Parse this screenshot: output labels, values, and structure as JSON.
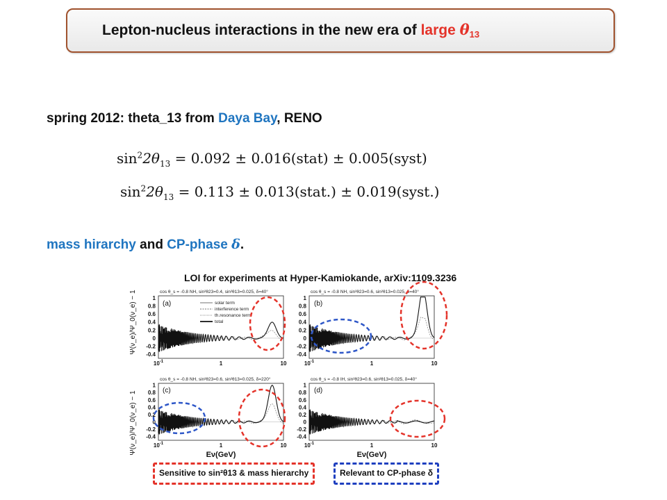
{
  "title": {
    "text_main": "Lepton-nucleus interactions in the new era of",
    "text_highlight": "large",
    "theta_symbol": "θ",
    "theta_sub": "13"
  },
  "line1": {
    "lead": "spring  2012: theta_13 from",
    "daya_bay": "Daya Bay",
    "sep": ",",
    "reno": "RENO"
  },
  "equations": [
    {
      "lhs_sin": "sin",
      "lhs_sup": "2",
      "lhs_rest": "2θ",
      "lhs_sub": "13",
      "rhs": "= 0.092 ± 0.016(stat) ± 0.005(syst)"
    },
    {
      "lhs_sin": "sin",
      "lhs_sup": "2",
      "lhs_rest": "2θ",
      "lhs_sub": "13",
      "rhs": "= 0.113 ± 0.013(stat.) ± 0.019(syst.)"
    }
  ],
  "line2": {
    "mass_hierarchy": "mass hirarchy",
    "and": "and",
    "cp_phase": "CP-phase",
    "delta": "δ",
    "period": "."
  },
  "figure": {
    "title": "LOI for experiments at Hyper-Kamiokande, arXiv:1109.3236",
    "ylabel": "Ψ(ν_e)/Ψ_0(ν_e) − 1",
    "xlabel": "Eν(GeV)",
    "y_ticks": [
      "1",
      "0.8",
      "0.6",
      "0.4",
      "0.2",
      "0",
      "-0.2",
      "-0.4"
    ],
    "x_ticks": [
      "10",
      "1",
      "10"
    ],
    "x_tick_exp": "-1",
    "legend_entries": [
      "solar term",
      "interference term",
      "th.resonance term",
      "total"
    ],
    "panels": [
      {
        "tag": "(a)",
        "header": "cos θ_s = -0.8   NH, sin²θ23=0.4, sin²θ13=0.025, δ=40°"
      },
      {
        "tag": "(b)",
        "header": "cos θ_s = -0.8   NH, sin²θ23=0.6, sin²θ13=0.025, δ=40°"
      },
      {
        "tag": "(c)",
        "header": "cos θ_s = -0.8   NH, sin²θ23=0.6, sin²θ13=0.025, δ=220°"
      },
      {
        "tag": "(d)",
        "header": "cos θ_s = -0.8   IH, sin²θ23=0.6, sin²θ13=0.025, δ=40°"
      }
    ],
    "legend_red": "Sensitive to sin²θ13 & mass hierarchy",
    "legend_blue": "Relevant to CP-phase δ"
  },
  "colors": {
    "accent_red": "#e4332a",
    "accent_blue": "#1f75c0",
    "title_border": "#a0522d"
  }
}
